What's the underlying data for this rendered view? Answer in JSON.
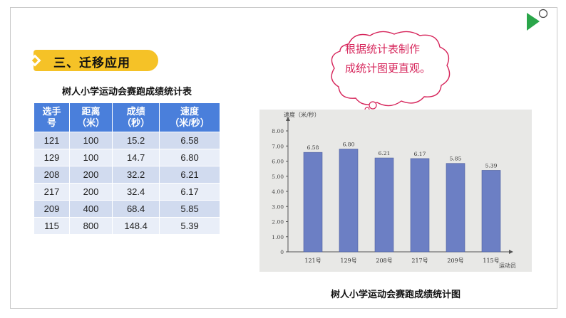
{
  "section": {
    "label": "三、迁移应用"
  },
  "table": {
    "title": "树人小学运动会赛跑成绩统计表",
    "headers": [
      [
        "选手",
        "号"
      ],
      [
        "距离",
        "（米）"
      ],
      [
        "成绩",
        "（秒）"
      ],
      [
        "速度",
        "（米/秒）"
      ]
    ],
    "rows": [
      [
        "121",
        "100",
        "15.2",
        "6.58"
      ],
      [
        "129",
        "100",
        "14.7",
        "6.80"
      ],
      [
        "208",
        "200",
        "32.2",
        "6.21"
      ],
      [
        "217",
        "200",
        "32.4",
        "6.17"
      ],
      [
        "209",
        "400",
        "68.4",
        "5.85"
      ],
      [
        "115",
        "800",
        "148.4",
        "5.39"
      ]
    ],
    "colors": {
      "header": "#4a7fdb",
      "row_odd": "#d1dbef",
      "row_even": "#e9eef8"
    }
  },
  "bubble": {
    "lines": [
      "根据统计表制作",
      "成统计图更直观。"
    ],
    "color": "#d6245a"
  },
  "chart_title": "树人小学运动会赛跑成绩统计图",
  "chart_data": {
    "type": "bar",
    "ylabel": "速度（米/秒）",
    "xlabel": "运动员",
    "categories": [
      "121号",
      "129号",
      "208号",
      "217号",
      "209号",
      "115号"
    ],
    "values": [
      6.58,
      6.8,
      6.21,
      6.17,
      5.85,
      5.39
    ],
    "value_labels": [
      "6.58",
      "6.80",
      "6.21",
      "6.17",
      "5.85",
      "5.39"
    ],
    "ylim": [
      0,
      8
    ],
    "yticks": [
      "0",
      "1.00",
      "2.00",
      "3.00",
      "4.00",
      "5.00",
      "6.00",
      "7.00",
      "8.00"
    ],
    "grid": false,
    "bar_color": "#6c7fc4"
  },
  "icons": {
    "play": "play-triangle-icon",
    "accent": "#2aa64a"
  }
}
